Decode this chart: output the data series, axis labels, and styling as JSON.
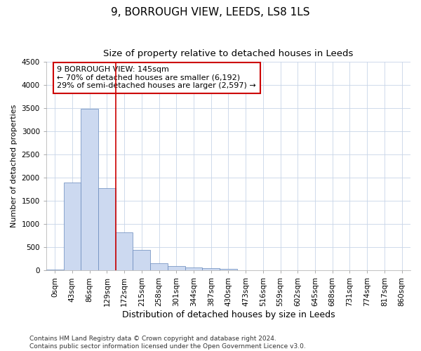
{
  "title": "9, BORROUGH VIEW, LEEDS, LS8 1LS",
  "subtitle": "Size of property relative to detached houses in Leeds",
  "xlabel": "Distribution of detached houses by size in Leeds",
  "ylabel": "Number of detached properties",
  "bar_color": "#ccd9f0",
  "bar_edge_color": "#6688bb",
  "vline_color": "#cc0000",
  "vline_x": 3.5,
  "annotation_line1": "9 BORROUGH VIEW: 145sqm",
  "annotation_line2": "← 70% of detached houses are smaller (6,192)",
  "annotation_line3": "29% of semi-detached houses are larger (2,597) →",
  "annotation_box_color": "#cc0000",
  "categories": [
    "0sqm",
    "43sqm",
    "86sqm",
    "129sqm",
    "172sqm",
    "215sqm",
    "258sqm",
    "301sqm",
    "344sqm",
    "387sqm",
    "430sqm",
    "473sqm",
    "516sqm",
    "559sqm",
    "602sqm",
    "645sqm",
    "688sqm",
    "731sqm",
    "774sqm",
    "817sqm",
    "860sqm"
  ],
  "values": [
    25,
    1900,
    3490,
    1780,
    830,
    440,
    155,
    95,
    65,
    50,
    30,
    0,
    0,
    0,
    0,
    0,
    0,
    0,
    0,
    0,
    0
  ],
  "ylim": [
    0,
    4500
  ],
  "yticks": [
    0,
    500,
    1000,
    1500,
    2000,
    2500,
    3000,
    3500,
    4000,
    4500
  ],
  "footer": "Contains HM Land Registry data © Crown copyright and database right 2024.\nContains public sector information licensed under the Open Government Licence v3.0.",
  "title_fontsize": 11,
  "subtitle_fontsize": 9.5,
  "xlabel_fontsize": 9,
  "ylabel_fontsize": 8,
  "tick_fontsize": 7.5,
  "footer_fontsize": 6.5
}
